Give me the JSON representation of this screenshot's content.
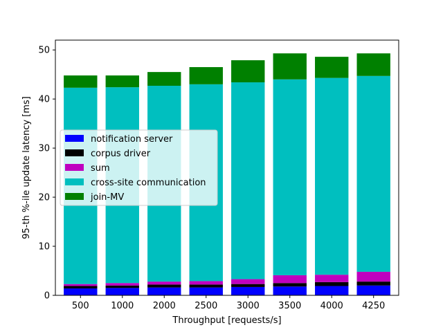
{
  "chart_data": {
    "type": "bar",
    "stacked": true,
    "title": "",
    "xlabel": "Throughput [requests/s]",
    "ylabel": "95-th %-ile update latency [ms]",
    "ylim": [
      0,
      52
    ],
    "yticks": [
      0,
      10,
      20,
      30,
      40,
      50
    ],
    "grid": false,
    "legend_placement": "center-left",
    "categories": [
      "500",
      "1000",
      "2000",
      "2500",
      "3000",
      "3500",
      "4000",
      "4250"
    ],
    "series": [
      {
        "name": "notification server",
        "color": "#0000ff",
        "values": [
          1.4,
          1.5,
          1.6,
          1.6,
          1.7,
          1.8,
          1.9,
          2.0
        ]
      },
      {
        "name": "corpus driver",
        "color": "#000000",
        "values": [
          0.5,
          0.5,
          0.6,
          0.6,
          0.6,
          0.7,
          0.8,
          0.8
        ]
      },
      {
        "name": "sum",
        "color": "#bf00bf",
        "values": [
          0.4,
          0.5,
          0.6,
          0.7,
          1.0,
          1.6,
          1.5,
          2.0
        ]
      },
      {
        "name": "cross-site communication",
        "color": "#00bfbf",
        "values": [
          40.0,
          39.9,
          39.9,
          40.1,
          40.1,
          39.9,
          40.1,
          39.9
        ]
      },
      {
        "name": "join-MV",
        "color": "#008000",
        "values": [
          2.5,
          2.4,
          2.8,
          3.5,
          4.5,
          5.3,
          4.3,
          4.6
        ]
      }
    ]
  }
}
